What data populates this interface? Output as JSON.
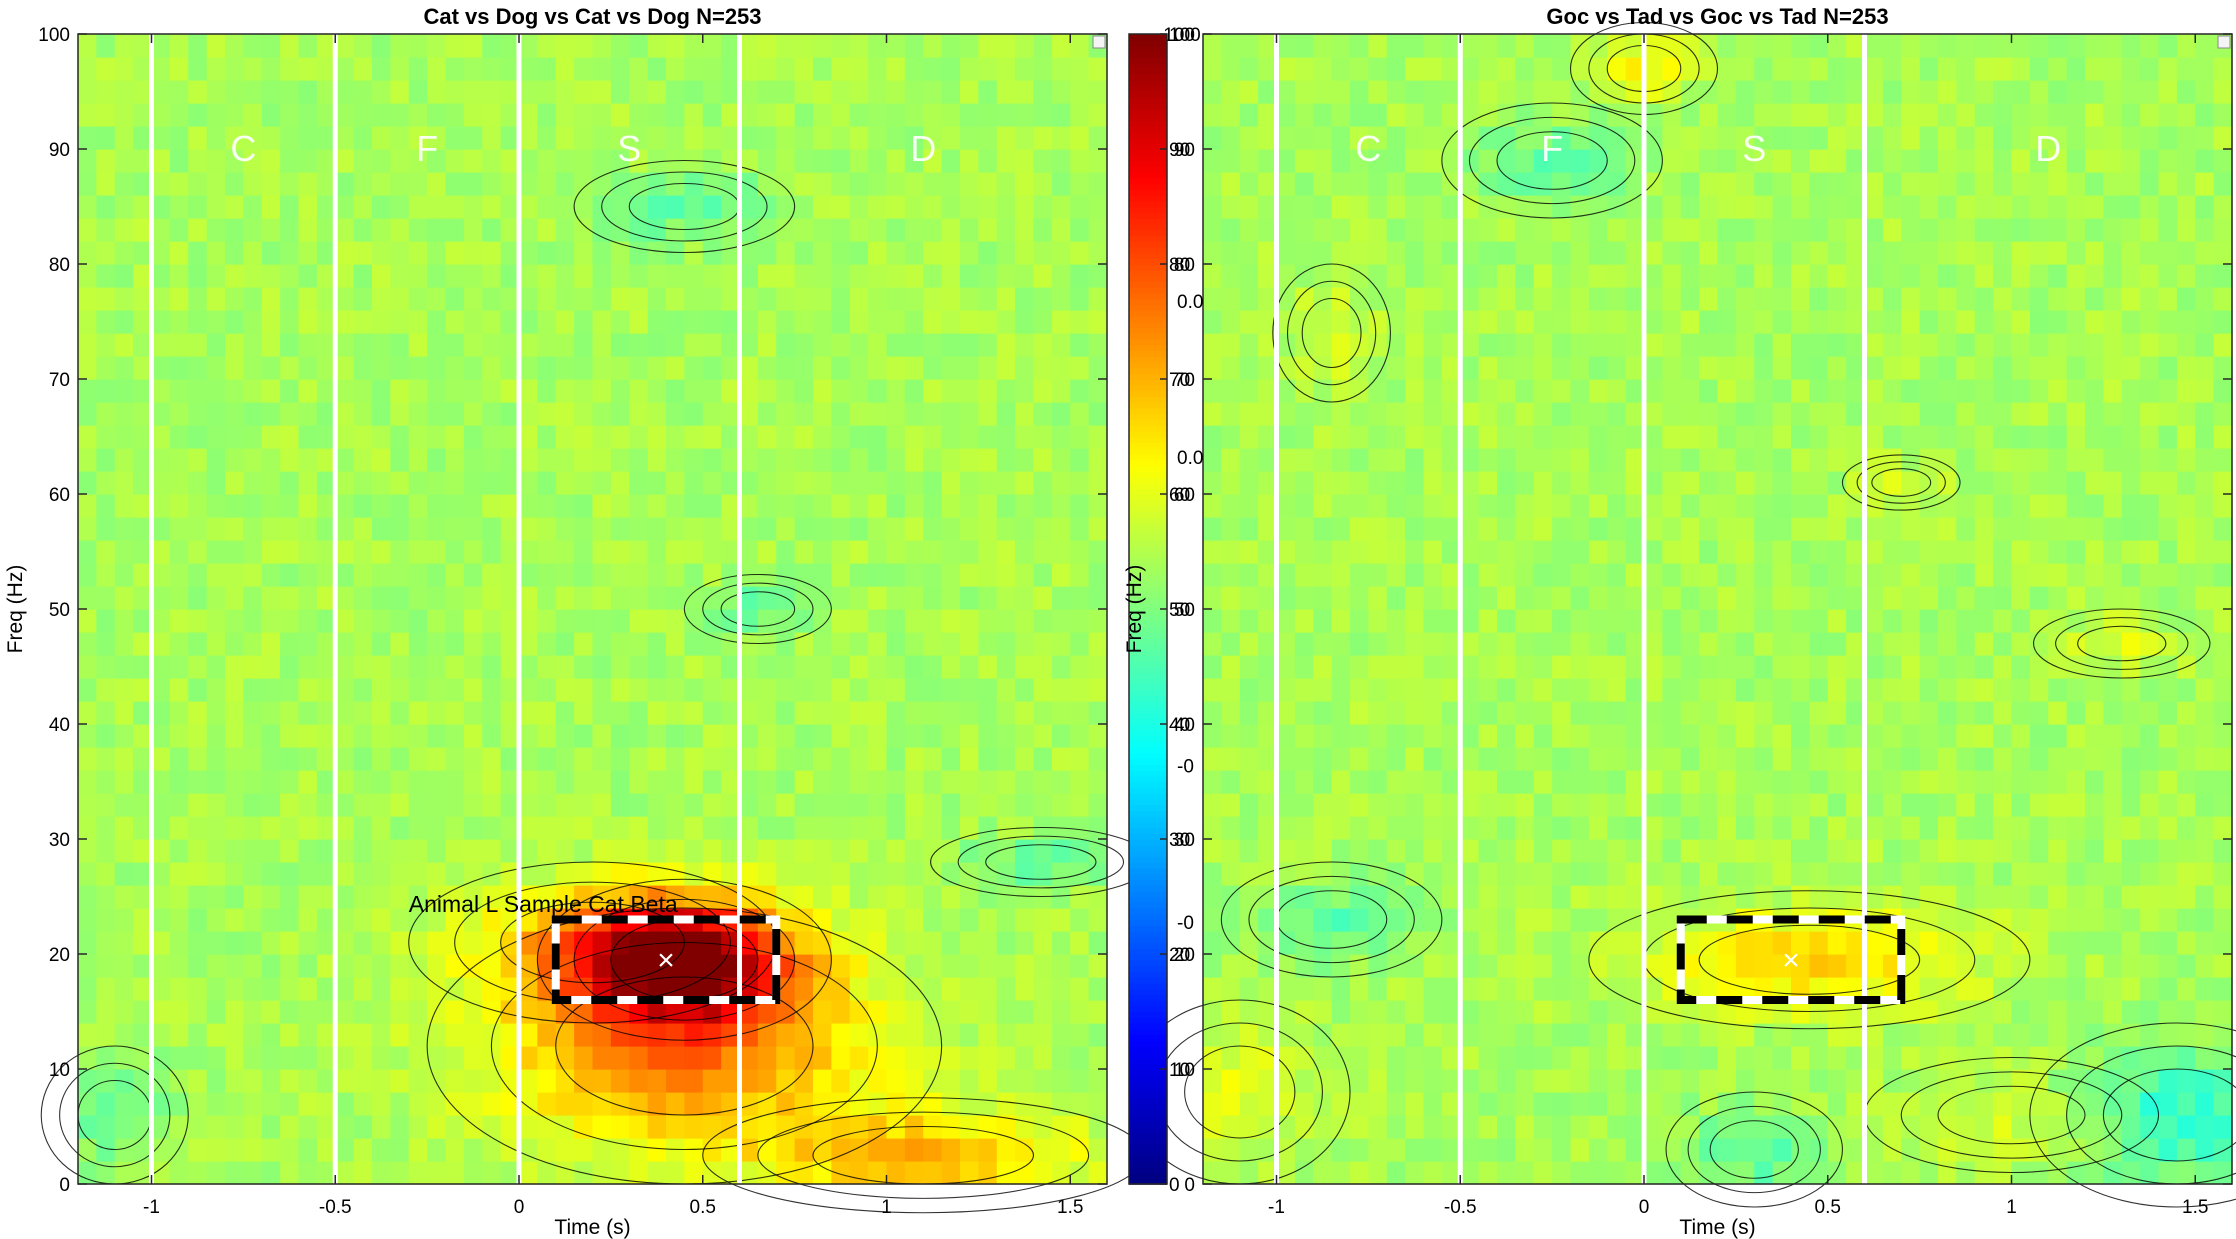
{
  "chart_data": [
    {
      "type": "heatmap",
      "title": "Cat vs Dog vs Cat vs Dog N=253",
      "xlabel": "Time (s)",
      "ylabel": "Freq (Hz)",
      "xlim": [
        -1.2,
        1.6
      ],
      "ylim": [
        0,
        100
      ],
      "xticks": [
        -1,
        -0.5,
        0,
        0.5,
        1,
        1.5
      ],
      "xtick_labels": [
        "-1",
        "-0.5",
        "0",
        "0.5",
        "1",
        "1.5"
      ],
      "yticks": [
        0,
        10,
        20,
        30,
        40,
        50,
        60,
        70,
        80,
        90,
        100
      ],
      "yticks_labels": [
        "0",
        "10",
        "20",
        "30",
        "40",
        "50",
        "60",
        "70",
        "80",
        "90",
        "100"
      ],
      "phase_boundaries": [
        -1,
        -0.5,
        0,
        0.6
      ],
      "phase_labels": [
        {
          "label": "C",
          "x": -0.75,
          "y": 90
        },
        {
          "label": "F",
          "x": -0.25,
          "y": 90
        },
        {
          "label": "S",
          "x": 0.3,
          "y": 90
        },
        {
          "label": "D",
          "x": 1.1,
          "y": 90
        }
      ],
      "roi_box": {
        "x": [
          0.1,
          0.7
        ],
        "y": [
          16,
          23
        ]
      },
      "marker": {
        "label": "×",
        "x": 0.4,
        "y": 19.5
      },
      "annotation": {
        "text": "Animal L Sample Cat Beta",
        "x": -0.3,
        "y": 24
      },
      "blobs": [
        {
          "x": 0.45,
          "y": 19.5,
          "sx": 0.2,
          "sy": 3.5,
          "amp": 42
        },
        {
          "x": 0.45,
          "y": 12,
          "sx": 0.35,
          "sy": 6,
          "amp": 22
        },
        {
          "x": 1.1,
          "y": 2.5,
          "sx": 0.3,
          "sy": 2.5,
          "amp": 16
        },
        {
          "x": 0.2,
          "y": 21,
          "sx": 0.25,
          "sy": 3.5,
          "amp": 12
        },
        {
          "x": 0.45,
          "y": 85,
          "sx": 0.15,
          "sy": 2.0,
          "amp": -8
        },
        {
          "x": 0.65,
          "y": 50,
          "sx": 0.1,
          "sy": 1.5,
          "amp": -7
        },
        {
          "x": 1.42,
          "y": 28,
          "sx": 0.15,
          "sy": 1.5,
          "amp": -7
        },
        {
          "x": -1.1,
          "y": 6,
          "sx": 0.1,
          "sy": 3,
          "amp": -6
        }
      ]
    },
    {
      "type": "heatmap",
      "title": "Goc vs Tad vs Goc vs Tad N=253",
      "xlabel": "Time (s)",
      "ylabel": "Freq (Hz)",
      "xlim": [
        -1.2,
        1.6
      ],
      "ylim": [
        0,
        100
      ],
      "xticks": [
        -1,
        -0.5,
        0,
        0.5,
        1,
        1.5
      ],
      "xtick_labels": [
        "-1",
        "-0.5",
        "0",
        "0.5",
        "1",
        "1.5"
      ],
      "yticks": [
        0,
        10,
        20,
        30,
        40,
        50,
        60,
        70,
        80,
        90,
        100
      ],
      "yticks_labels": [
        "0",
        "10",
        "20",
        "30",
        "40",
        "50",
        "60",
        "70",
        "80",
        "90",
        "100"
      ],
      "phase_boundaries": [
        -1,
        -0.5,
        0,
        0.6
      ],
      "phase_labels": [
        {
          "label": "C",
          "x": -0.75,
          "y": 90
        },
        {
          "label": "F",
          "x": -0.25,
          "y": 90
        },
        {
          "label": "S",
          "x": 0.3,
          "y": 90
        },
        {
          "label": "D",
          "x": 1.1,
          "y": 90
        }
      ],
      "roi_box": {
        "x": [
          0.1,
          0.7
        ],
        "y": [
          16,
          23
        ]
      },
      "marker": {
        "label": "×",
        "x": 0.4,
        "y": 19.5
      },
      "annotation": {
        "text": "",
        "x": 0,
        "y": 0
      },
      "blobs": [
        {
          "x": 0.45,
          "y": 19.5,
          "sx": 0.3,
          "sy": 3.0,
          "amp": 13
        },
        {
          "x": 0.0,
          "y": 97,
          "sx": 0.1,
          "sy": 2,
          "amp": 8
        },
        {
          "x": -0.25,
          "y": 89,
          "sx": 0.15,
          "sy": 2.5,
          "amp": -7
        },
        {
          "x": 1.45,
          "y": 6,
          "sx": 0.2,
          "sy": 4,
          "amp": -12
        },
        {
          "x": 0.3,
          "y": 3,
          "sx": 0.12,
          "sy": 2.5,
          "amp": -8
        },
        {
          "x": -0.85,
          "y": 23,
          "sx": 0.15,
          "sy": 2.5,
          "amp": -7
        },
        {
          "x": -1.1,
          "y": 8,
          "sx": 0.15,
          "sy": 4,
          "amp": 6
        },
        {
          "x": 1.3,
          "y": 47,
          "sx": 0.12,
          "sy": 1.5,
          "amp": 5
        },
        {
          "x": 1.0,
          "y": 6,
          "sx": 0.2,
          "sy": 2.5,
          "amp": 5
        },
        {
          "x": 0.7,
          "y": 61,
          "sx": 0.08,
          "sy": 1.2,
          "amp": 5
        },
        {
          "x": -0.85,
          "y": 74,
          "sx": 0.08,
          "sy": 3,
          "amp": 5
        }
      ]
    }
  ],
  "colorbar": {
    "range": [
      0,
      100
    ],
    "ticks": [
      0,
      10,
      20,
      30,
      40,
      50,
      60,
      70,
      80,
      90,
      100
    ],
    "tick_labels": [
      "0",
      "10",
      "20",
      "30",
      "40",
      "50",
      "60",
      "70",
      "80",
      "90",
      "100"
    ],
    "label": "Freq (Hz)",
    "colormap": "jet",
    "partial_labels": [
      {
        "text": "0.0",
        "value": 76.8
      },
      {
        "text": "0.0",
        "value": 63.2
      },
      {
        "text": "-0",
        "value": 36.4
      },
      {
        "text": "-0",
        "value": 22.8
      }
    ]
  }
}
